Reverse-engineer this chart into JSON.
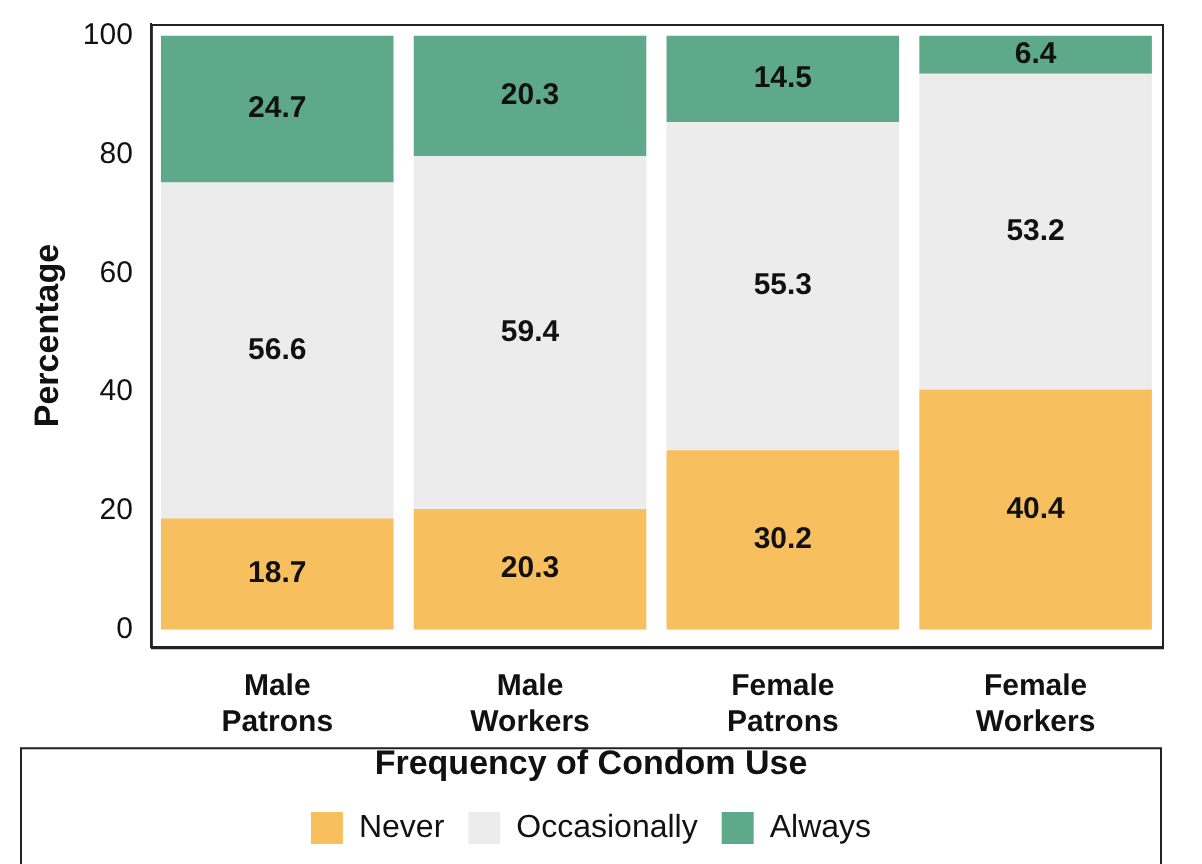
{
  "chart_data": {
    "type": "bar",
    "stacked": true,
    "ylabel": "Percentage",
    "legend_title": "Frequency of Condom Use",
    "legend": "bottom",
    "data_labels": true,
    "categories": [
      "Male Patrons",
      "Male Workers",
      "Female Patrons",
      "Female Workers"
    ],
    "ylim": [
      -3,
      102
    ],
    "yticks": [
      0,
      20,
      40,
      60,
      80,
      100
    ],
    "grid": false,
    "series": [
      {
        "name": "Never",
        "color": "#f8bf5f",
        "values": [
          18.7,
          20.3,
          30.2,
          40.4
        ]
      },
      {
        "name": "Occasionally",
        "color": "#ececec",
        "values": [
          56.6,
          59.4,
          55.3,
          53.2
        ]
      },
      {
        "name": "Always",
        "color": "#5fa98b",
        "values": [
          24.7,
          20.3,
          14.5,
          6.4
        ]
      }
    ]
  }
}
